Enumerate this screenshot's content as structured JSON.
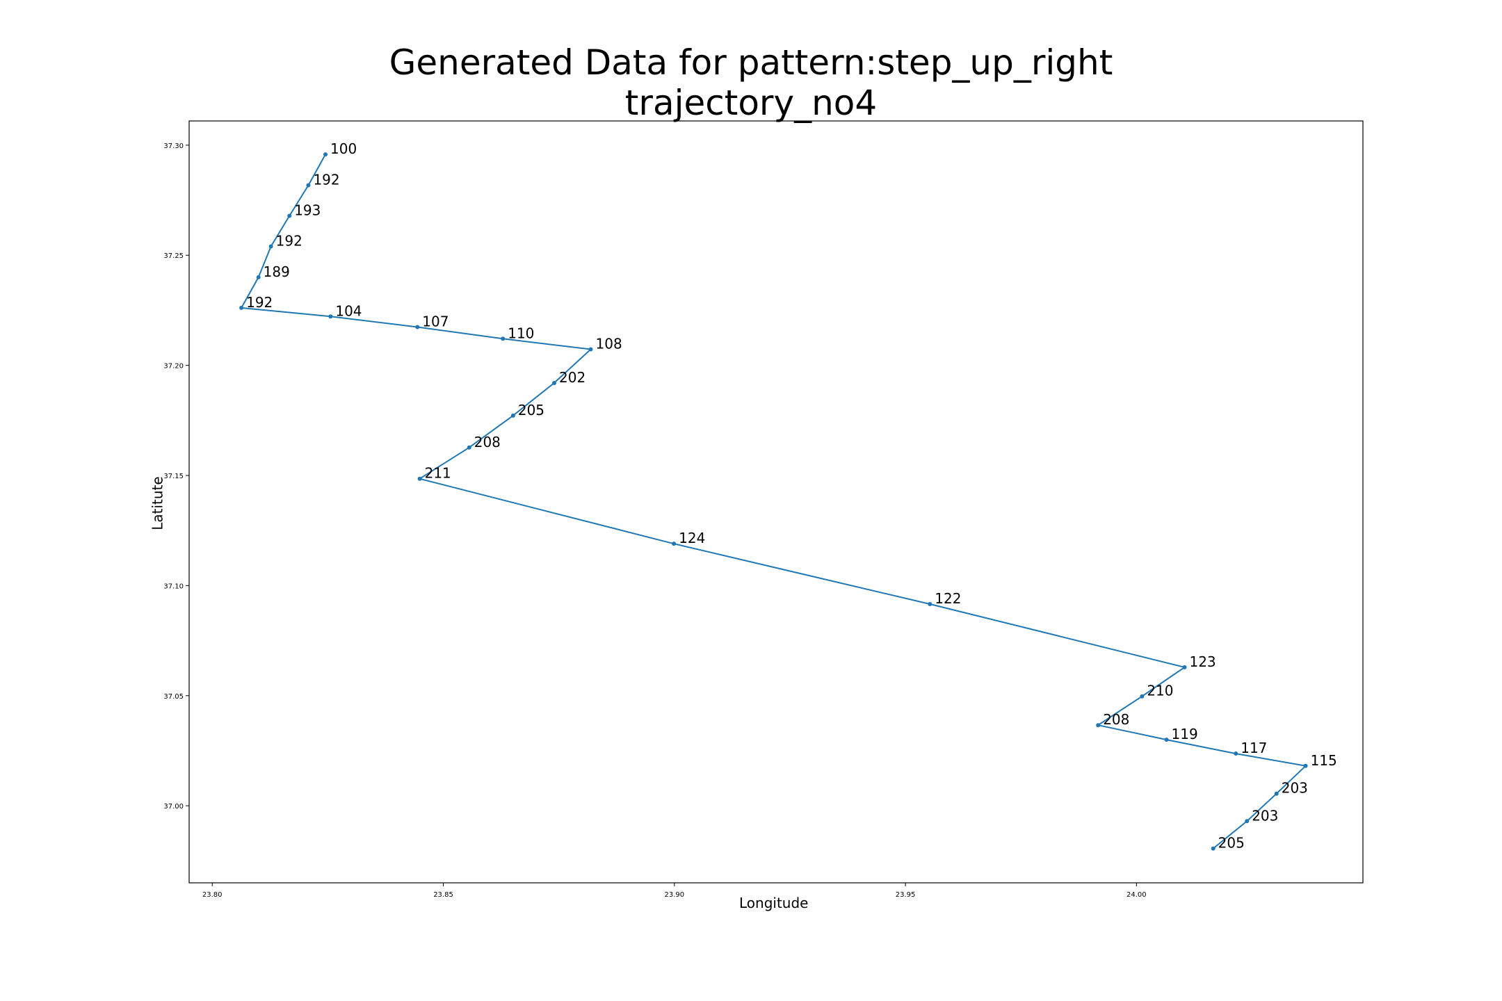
{
  "chart_data": {
    "type": "line",
    "title_line1": "Generated Data for pattern:step_up_right",
    "title_line2": "trajectory_no4",
    "xlabel": "Longitude",
    "ylabel": "Latitute",
    "xlim": [
      23.795,
      24.049
    ],
    "ylim": [
      36.965,
      37.311
    ],
    "xticks": [
      23.8,
      23.85,
      23.9,
      23.95,
      24.0
    ],
    "xtick_labels": [
      "23.80",
      "23.85",
      "23.90",
      "23.95",
      "24.00"
    ],
    "yticks": [
      37.0,
      37.05,
      37.1,
      37.15,
      37.2,
      37.25,
      37.3
    ],
    "ytick_labels": [
      "37.00",
      "37.05",
      "37.10",
      "37.15",
      "37.20",
      "37.25",
      "37.30"
    ],
    "grid": false,
    "line_color": "#1f77b4",
    "series": [
      {
        "points": [
          {
            "x": 23.8245,
            "y": 37.2958,
            "label": "100"
          },
          {
            "x": 23.8208,
            "y": 37.2818,
            "label": "192"
          },
          {
            "x": 23.8167,
            "y": 37.2679,
            "label": "193"
          },
          {
            "x": 23.8127,
            "y": 37.254,
            "label": "192"
          },
          {
            "x": 23.81,
            "y": 37.24,
            "label": "189"
          },
          {
            "x": 23.8063,
            "y": 37.2261,
            "label": "192"
          },
          {
            "x": 23.8256,
            "y": 37.2222,
            "label": "104"
          },
          {
            "x": 23.8444,
            "y": 37.2174,
            "label": "107"
          },
          {
            "x": 23.8629,
            "y": 37.2121,
            "label": "110"
          },
          {
            "x": 23.8819,
            "y": 37.2073,
            "label": "108"
          },
          {
            "x": 23.874,
            "y": 37.192,
            "label": "202"
          },
          {
            "x": 23.8651,
            "y": 37.1772,
            "label": "205"
          },
          {
            "x": 23.8556,
            "y": 37.1627,
            "label": "208"
          },
          {
            "x": 23.8449,
            "y": 37.1485,
            "label": "211"
          },
          {
            "x": 23.8999,
            "y": 37.119,
            "label": "124"
          },
          {
            "x": 23.9553,
            "y": 37.0916,
            "label": "122"
          },
          {
            "x": 24.0104,
            "y": 37.0629,
            "label": "123"
          },
          {
            "x": 24.0012,
            "y": 37.0497,
            "label": "210"
          },
          {
            "x": 23.9917,
            "y": 37.0366,
            "label": "208"
          },
          {
            "x": 24.0065,
            "y": 37.03,
            "label": "119"
          },
          {
            "x": 24.0215,
            "y": 37.0237,
            "label": "117"
          },
          {
            "x": 24.0366,
            "y": 37.0181,
            "label": "115"
          },
          {
            "x": 24.0303,
            "y": 37.0055,
            "label": "203"
          },
          {
            "x": 24.0239,
            "y": 36.993,
            "label": "203"
          },
          {
            "x": 24.0166,
            "y": 36.9806,
            "label": "205"
          }
        ]
      }
    ]
  }
}
